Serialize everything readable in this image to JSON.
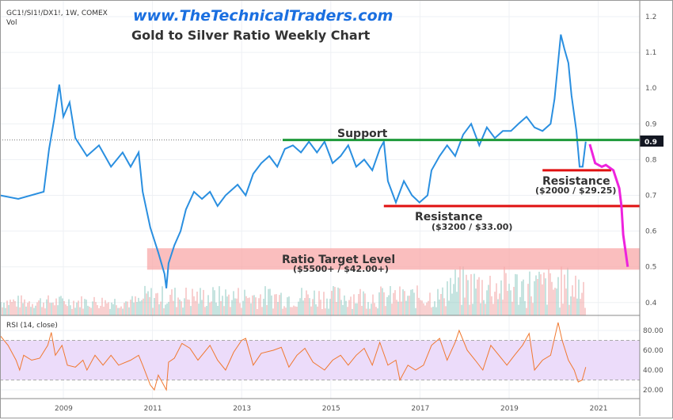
{
  "header": {
    "symbol": "GC1!/SI1!/DX1!, 1W, COMEX",
    "vol_label": "Vol",
    "website": "www.TheTechnicalTraders.com",
    "title": "Gold to Silver Ratio Weekly Chart"
  },
  "colors": {
    "price": "#2a8fe0",
    "support": "#1e9a3a",
    "resistance": "#e01010",
    "target_band": "#f8a8a8",
    "projection": "#ee22dd",
    "rsi": "#f07830",
    "rsi_band": "#ecdcfa",
    "vol_up": "#8cc8c0",
    "vol_down": "#f0a0a0"
  },
  "chart_data": [
    {
      "type": "line",
      "name": "price",
      "xlim": [
        2007.58,
        2021.95
      ],
      "ylim": [
        0.37,
        1.22
      ],
      "x_ticks": [
        "2009",
        "2011",
        "2013",
        "2015",
        "2017",
        "2019",
        "2021"
      ],
      "y_ticks": [
        "1.2",
        "1.1",
        "1.0",
        "0.9",
        "0.8",
        "0.7",
        "0.6",
        "0.5",
        "0.4"
      ],
      "current_value_label": "0.9",
      "current_value": 0.855,
      "points": [
        [
          2007.58,
          0.7
        ],
        [
          2007.99,
          0.69
        ],
        [
          2008.56,
          0.71
        ],
        [
          2008.68,
          0.83
        ],
        [
          2008.79,
          0.91
        ],
        [
          2008.91,
          1.01
        ],
        [
          2009.0,
          0.92
        ],
        [
          2009.14,
          0.96
        ],
        [
          2009.27,
          0.86
        ],
        [
          2009.53,
          0.81
        ],
        [
          2009.8,
          0.84
        ],
        [
          2010.07,
          0.78
        ],
        [
          2010.33,
          0.82
        ],
        [
          2010.51,
          0.78
        ],
        [
          2010.69,
          0.82
        ],
        [
          2010.78,
          0.71
        ],
        [
          2010.95,
          0.61
        ],
        [
          2011.13,
          0.54
        ],
        [
          2011.27,
          0.48
        ],
        [
          2011.31,
          0.44
        ],
        [
          2011.36,
          0.51
        ],
        [
          2011.49,
          0.56
        ],
        [
          2011.63,
          0.6
        ],
        [
          2011.75,
          0.66
        ],
        [
          2011.93,
          0.71
        ],
        [
          2012.11,
          0.69
        ],
        [
          2012.29,
          0.71
        ],
        [
          2012.46,
          0.67
        ],
        [
          2012.64,
          0.7
        ],
        [
          2012.91,
          0.73
        ],
        [
          2013.09,
          0.7
        ],
        [
          2013.26,
          0.76
        ],
        [
          2013.44,
          0.79
        ],
        [
          2013.62,
          0.81
        ],
        [
          2013.8,
          0.78
        ],
        [
          2013.97,
          0.83
        ],
        [
          2014.15,
          0.84
        ],
        [
          2014.33,
          0.82
        ],
        [
          2014.51,
          0.85
        ],
        [
          2014.69,
          0.82
        ],
        [
          2014.86,
          0.85
        ],
        [
          2015.04,
          0.79
        ],
        [
          2015.22,
          0.81
        ],
        [
          2015.39,
          0.84
        ],
        [
          2015.57,
          0.78
        ],
        [
          2015.75,
          0.8
        ],
        [
          2015.93,
          0.77
        ],
        [
          2016.1,
          0.83
        ],
        [
          2016.19,
          0.85
        ],
        [
          2016.28,
          0.74
        ],
        [
          2016.46,
          0.68
        ],
        [
          2016.64,
          0.74
        ],
        [
          2016.82,
          0.7
        ],
        [
          2016.99,
          0.68
        ],
        [
          2017.17,
          0.7
        ],
        [
          2017.26,
          0.77
        ],
        [
          2017.44,
          0.81
        ],
        [
          2017.61,
          0.84
        ],
        [
          2017.79,
          0.81
        ],
        [
          2017.97,
          0.87
        ],
        [
          2018.15,
          0.9
        ],
        [
          2018.33,
          0.84
        ],
        [
          2018.5,
          0.89
        ],
        [
          2018.68,
          0.86
        ],
        [
          2018.86,
          0.88
        ],
        [
          2019.04,
          0.88
        ],
        [
          2019.21,
          0.9
        ],
        [
          2019.39,
          0.92
        ],
        [
          2019.57,
          0.89
        ],
        [
          2019.75,
          0.88
        ],
        [
          2019.93,
          0.9
        ],
        [
          2020.02,
          0.97
        ],
        [
          2020.16,
          1.15
        ],
        [
          2020.24,
          1.11
        ],
        [
          2020.33,
          1.07
        ],
        [
          2020.4,
          0.98
        ],
        [
          2020.51,
          0.88
        ],
        [
          2020.58,
          0.78
        ],
        [
          2020.65,
          0.78
        ],
        [
          2020.72,
          0.85
        ]
      ],
      "projection": [
        [
          2020.81,
          0.843
        ],
        [
          2020.93,
          0.79
        ],
        [
          2021.08,
          0.78
        ],
        [
          2021.17,
          0.785
        ],
        [
          2021.34,
          0.77
        ],
        [
          2021.47,
          0.72
        ],
        [
          2021.52,
          0.67
        ],
        [
          2021.56,
          0.59
        ],
        [
          2021.66,
          0.5
        ]
      ],
      "annotations": {
        "support": {
          "label": "Support",
          "value": 0.855,
          "from": 2013.92,
          "to": 2021.95
        },
        "resistance_1": {
          "label": "Resistance",
          "sub": "($2000 / $29.25)",
          "value": 0.77,
          "from": 2019.75,
          "to": 2021.29
        },
        "resistance_2": {
          "label": "Resistance",
          "sub": "($3200 / $33.00)",
          "value": 0.67,
          "from": 2016.19,
          "to": 2021.95
        },
        "target": {
          "label": "Ratio Target Level",
          "sub": "($5500+ / $42.00+)",
          "low": 0.492,
          "high": 0.552,
          "from": 2010.88,
          "to": 2021.95
        }
      }
    },
    {
      "type": "line",
      "name": "rsi",
      "label": "RSI (14, close)",
      "ylim": [
        8,
        95
      ],
      "y_ticks": [
        "80.00",
        "60.00",
        "40.00",
        "20.00"
      ],
      "band": [
        30,
        70
      ],
      "points": [
        [
          2007.58,
          75
        ],
        [
          2007.76,
          65
        ],
        [
          2007.94,
          50
        ],
        [
          2008.02,
          40
        ],
        [
          2008.11,
          55
        ],
        [
          2008.29,
          50
        ],
        [
          2008.47,
          52
        ],
        [
          2008.65,
          65
        ],
        [
          2008.73,
          78
        ],
        [
          2008.82,
          55
        ],
        [
          2008.97,
          65
        ],
        [
          2009.09,
          45
        ],
        [
          2009.27,
          43
        ],
        [
          2009.44,
          50
        ],
        [
          2009.53,
          40
        ],
        [
          2009.71,
          55
        ],
        [
          2009.89,
          45
        ],
        [
          2010.07,
          55
        ],
        [
          2010.24,
          45
        ],
        [
          2010.51,
          50
        ],
        [
          2010.69,
          55
        ],
        [
          2010.78,
          45
        ],
        [
          2010.95,
          25
        ],
        [
          2011.04,
          20
        ],
        [
          2011.13,
          35
        ],
        [
          2011.31,
          20
        ],
        [
          2011.36,
          48
        ],
        [
          2011.49,
          52
        ],
        [
          2011.66,
          67
        ],
        [
          2011.84,
          62
        ],
        [
          2012.02,
          50
        ],
        [
          2012.29,
          65
        ],
        [
          2012.46,
          50
        ],
        [
          2012.64,
          40
        ],
        [
          2012.82,
          58
        ],
        [
          2013.0,
          70
        ],
        [
          2013.09,
          72
        ],
        [
          2013.26,
          45
        ],
        [
          2013.44,
          57
        ],
        [
          2013.71,
          60
        ],
        [
          2013.89,
          63
        ],
        [
          2014.06,
          43
        ],
        [
          2014.24,
          55
        ],
        [
          2014.42,
          62
        ],
        [
          2014.6,
          48
        ],
        [
          2014.86,
          40
        ],
        [
          2015.04,
          50
        ],
        [
          2015.22,
          55
        ],
        [
          2015.39,
          45
        ],
        [
          2015.57,
          55
        ],
        [
          2015.75,
          62
        ],
        [
          2015.93,
          45
        ],
        [
          2016.1,
          68
        ],
        [
          2016.28,
          45
        ],
        [
          2016.46,
          50
        ],
        [
          2016.55,
          30
        ],
        [
          2016.73,
          45
        ],
        [
          2016.9,
          40
        ],
        [
          2017.08,
          45
        ],
        [
          2017.26,
          65
        ],
        [
          2017.44,
          72
        ],
        [
          2017.61,
          50
        ],
        [
          2017.79,
          68
        ],
        [
          2017.88,
          80
        ],
        [
          2018.06,
          60
        ],
        [
          2018.24,
          50
        ],
        [
          2018.41,
          40
        ],
        [
          2018.59,
          65
        ],
        [
          2018.77,
          55
        ],
        [
          2018.95,
          45
        ],
        [
          2019.12,
          55
        ],
        [
          2019.3,
          65
        ],
        [
          2019.45,
          77
        ],
        [
          2019.57,
          40
        ],
        [
          2019.75,
          50
        ],
        [
          2019.93,
          55
        ],
        [
          2020.1,
          88
        ],
        [
          2020.19,
          70
        ],
        [
          2020.33,
          50
        ],
        [
          2020.46,
          40
        ],
        [
          2020.55,
          28
        ],
        [
          2020.64,
          30
        ],
        [
          2020.72,
          43
        ]
      ]
    }
  ]
}
